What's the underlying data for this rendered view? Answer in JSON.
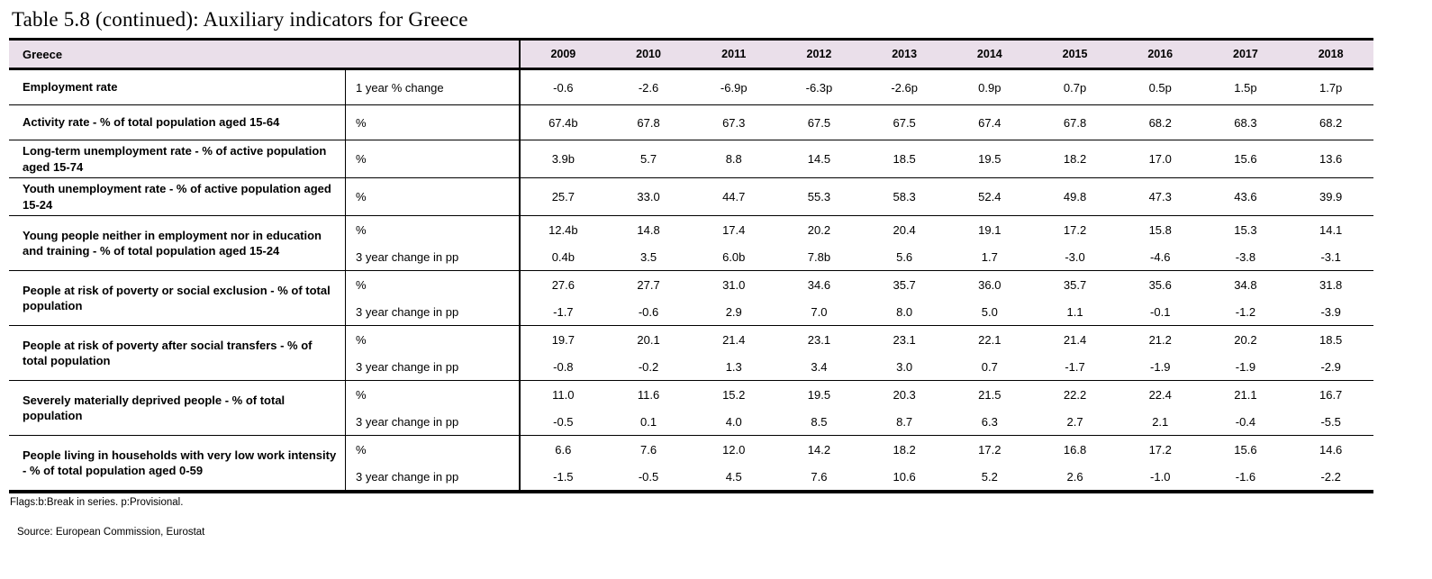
{
  "title": "Table 5.8 (continued): Auxiliary indicators for Greece",
  "table": {
    "region_label": "Greece",
    "years": [
      "2009",
      "2010",
      "2011",
      "2012",
      "2013",
      "2014",
      "2015",
      "2016",
      "2017",
      "2018"
    ],
    "rows": [
      {
        "indicator": "Employment rate",
        "series": [
          {
            "unit": "1 year % change",
            "values": [
              "-0.6",
              "-2.6",
              "-6.9p",
              "-6.3p",
              "-2.6p",
              "0.9p",
              "0.7p",
              "0.5p",
              "1.5p",
              "1.7p"
            ]
          }
        ]
      },
      {
        "indicator": "Activity rate - % of total population aged 15-64",
        "series": [
          {
            "unit": "%",
            "values": [
              "67.4b",
              "67.8",
              "67.3",
              "67.5",
              "67.5",
              "67.4",
              "67.8",
              "68.2",
              "68.3",
              "68.2"
            ]
          }
        ]
      },
      {
        "indicator": "Long-term unemployment rate -  % of active population aged 15-74",
        "series": [
          {
            "unit": "%",
            "values": [
              "3.9b",
              "5.7",
              "8.8",
              "14.5",
              "18.5",
              "19.5",
              "18.2",
              "17.0",
              "15.6",
              "13.6"
            ]
          }
        ]
      },
      {
        "indicator": "Youth unemployment rate -  % of active population aged 15-24",
        "series": [
          {
            "unit": "%",
            "values": [
              "25.7",
              "33.0",
              "44.7",
              "55.3",
              "58.3",
              "52.4",
              "49.8",
              "47.3",
              "43.6",
              "39.9"
            ]
          }
        ]
      },
      {
        "indicator": "Young people neither in employment nor in education and training - % of total population aged 15-24",
        "series": [
          {
            "unit": "%",
            "values": [
              "12.4b",
              "14.8",
              "17.4",
              "20.2",
              "20.4",
              "19.1",
              "17.2",
              "15.8",
              "15.3",
              "14.1"
            ]
          },
          {
            "unit": "3 year change in pp",
            "values": [
              "0.4b",
              "3.5",
              "6.0b",
              "7.8b",
              "5.6",
              "1.7",
              "-3.0",
              "-4.6",
              "-3.8",
              "-3.1"
            ]
          }
        ]
      },
      {
        "indicator": "People at risk of poverty or social exclusion - % of total population",
        "series": [
          {
            "unit": "%",
            "values": [
              "27.6",
              "27.7",
              "31.0",
              "34.6",
              "35.7",
              "36.0",
              "35.7",
              "35.6",
              "34.8",
              "31.8"
            ]
          },
          {
            "unit": "3 year change in pp",
            "values": [
              "-1.7",
              "-0.6",
              "2.9",
              "7.0",
              "8.0",
              "5.0",
              "1.1",
              "-0.1",
              "-1.2",
              "-3.9"
            ]
          }
        ]
      },
      {
        "indicator": "People at risk of poverty after social transfers - % of total population",
        "series": [
          {
            "unit": "%",
            "values": [
              "19.7",
              "20.1",
              "21.4",
              "23.1",
              "23.1",
              "22.1",
              "21.4",
              "21.2",
              "20.2",
              "18.5"
            ]
          },
          {
            "unit": "3 year change in pp",
            "values": [
              "-0.8",
              "-0.2",
              "1.3",
              "3.4",
              "3.0",
              "0.7",
              "-1.7",
              "-1.9",
              "-1.9",
              "-2.9"
            ]
          }
        ]
      },
      {
        "indicator": "Severely materially deprived people - % of total population",
        "series": [
          {
            "unit": "%",
            "values": [
              "11.0",
              "11.6",
              "15.2",
              "19.5",
              "20.3",
              "21.5",
              "22.2",
              "22.4",
              "21.1",
              "16.7"
            ]
          },
          {
            "unit": "3 year change in pp",
            "values": [
              "-0.5",
              "0.1",
              "4.0",
              "8.5",
              "8.7",
              "6.3",
              "2.7",
              "2.1",
              "-0.4",
              "-5.5"
            ]
          }
        ]
      },
      {
        "indicator": "People living in households with very low work intensity - % of total population aged 0-59",
        "series": [
          {
            "unit": "%",
            "values": [
              "6.6",
              "7.6",
              "12.0",
              "14.2",
              "18.2",
              "17.2",
              "16.8",
              "17.2",
              "15.6",
              "14.6"
            ]
          },
          {
            "unit": "3 year change in pp",
            "values": [
              "-1.5",
              "-0.5",
              "4.5",
              "7.6",
              "10.6",
              "5.2",
              "2.6",
              "-1.0",
              "-1.6",
              "-2.2"
            ]
          }
        ]
      }
    ]
  },
  "footnotes": {
    "flags": "Flags:b:Break in series. p:Provisional.",
    "source": "Source: European Commission, Eurostat"
  },
  "colors": {
    "header_bg": "#EADFEA",
    "border": "#000000"
  }
}
